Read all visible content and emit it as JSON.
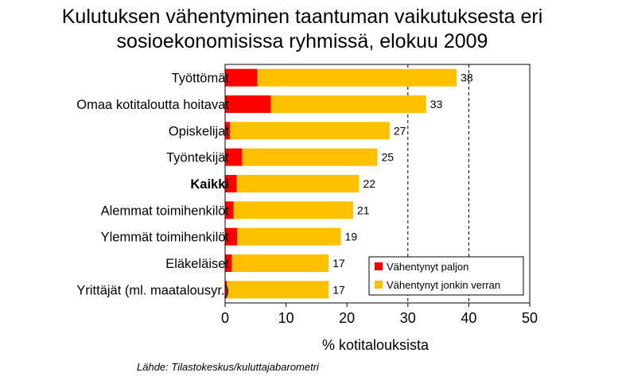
{
  "chart_data": {
    "type": "bar",
    "orientation": "horizontal",
    "stacked": true,
    "title_lines": [
      "Kulutuksen vähentyminen taantuman vaikutuksesta eri",
      "sosioekonomisissa ryhmissä, elokuu 2009"
    ],
    "categories": [
      "Työttömät",
      "Omaa kotitaloutta hoitavat",
      "Opiskelijat",
      "Työntekijät",
      "Kaikki",
      "Alemmat toimihenkilöt",
      "Ylemmät toimihenkilöt",
      "Eläkeläiset",
      "Yrittäjät (ml. maatalousyr.)"
    ],
    "bold_categories": [
      "Kaikki"
    ],
    "series": [
      {
        "name": "Vähentynyt paljon",
        "color": "#ff0000",
        "values": [
          5.3,
          7.5,
          0.8,
          2.8,
          1.9,
          1.4,
          2.0,
          1.1,
          0.3
        ]
      },
      {
        "name": "Vähentynyt jonkin verran",
        "color": "#ffc000",
        "values": [
          32.7,
          25.5,
          26.2,
          22.2,
          20.1,
          19.6,
          17.0,
          15.9,
          16.7
        ]
      }
    ],
    "totals": [
      38,
      33,
      27,
      25,
      22,
      21,
      19,
      17,
      17
    ],
    "xlabel": "% kotitalouksista",
    "xlim": [
      0,
      50
    ],
    "xticks": [
      0,
      10,
      20,
      30,
      40,
      50
    ],
    "grid": "vertical dashed at 30 and 40",
    "legend_position": "bottom-right"
  },
  "source": "Lähde: Tilastokeskus/kuluttajabarometri"
}
